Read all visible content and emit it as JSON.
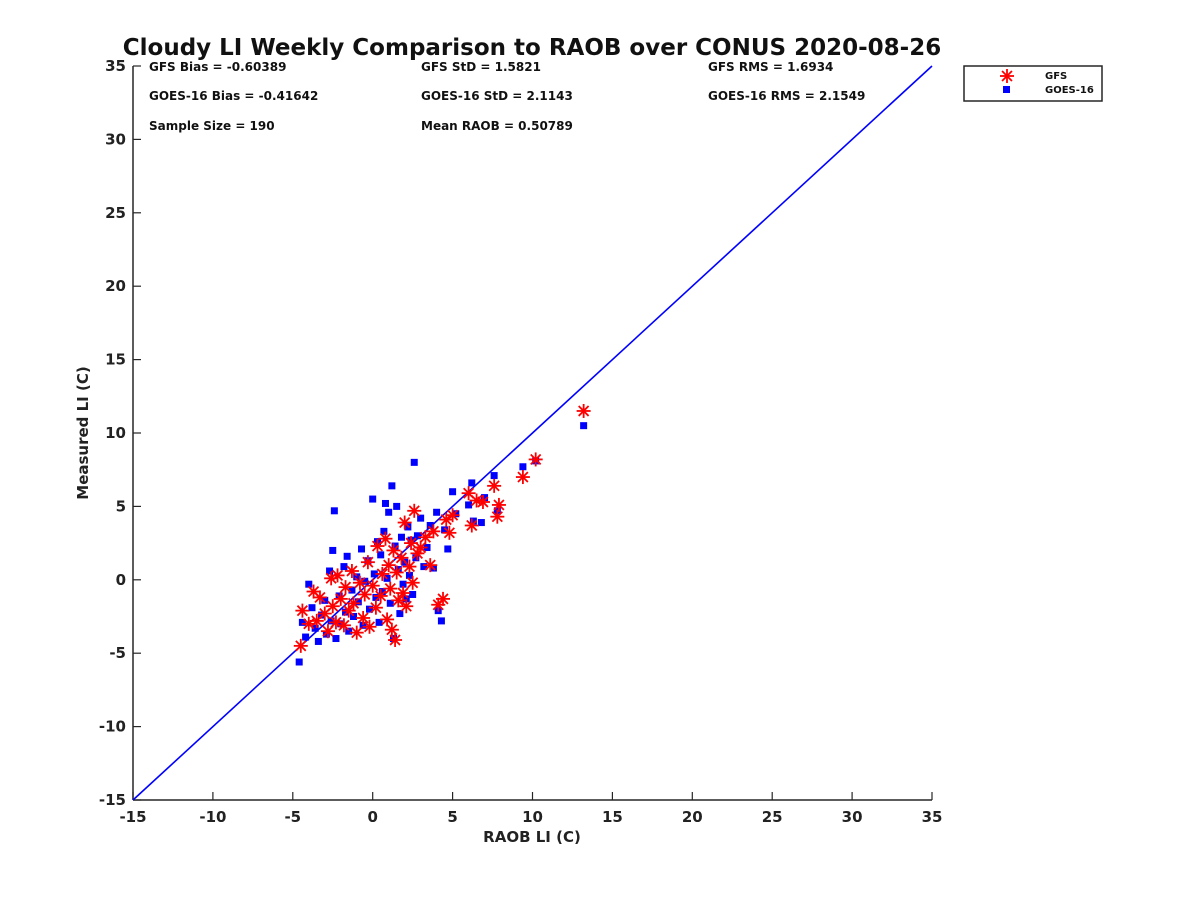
{
  "colors": {
    "gfs": "#ff0000",
    "goes": "#0000ff",
    "line": "#0000ff",
    "axis": "#262626"
  },
  "chart_data": {
    "type": "scatter",
    "title": "Cloudy LI Weekly Comparison to RAOB over CONUS 2020-08-26",
    "xlabel": "RAOB LI (C)",
    "ylabel": "Measured LI (C)",
    "xlim": [
      -15,
      35
    ],
    "ylim": [
      -15,
      35
    ],
    "xticks": [
      -15,
      -10,
      -5,
      0,
      5,
      10,
      15,
      20,
      25,
      30,
      35
    ],
    "yticks": [
      -15,
      -10,
      -5,
      0,
      5,
      10,
      15,
      20,
      25,
      30,
      35
    ],
    "grid": false,
    "legend_position": "top-right-outside",
    "reference_line": {
      "name": "1:1 line",
      "from": [
        -15,
        -15
      ],
      "to": [
        35,
        35
      ]
    },
    "stats": {
      "gfs_bias": "GFS Bias = -0.60389",
      "gfs_std": "GFS StD = 1.5821",
      "gfs_rms": "GFS RMS = 1.6934",
      "goes_bias": "GOES-16 Bias = -0.41642",
      "goes_std": "GOES-16 StD = 2.1143",
      "goes_rms": "GOES-16 RMS = 2.1549",
      "sample_size": "Sample Size = 190",
      "mean_raob": "Mean RAOB = 0.50789"
    },
    "series": [
      {
        "name": "GFS",
        "marker": "asterisk",
        "points": [
          [
            -4.5,
            -4.5
          ],
          [
            -4.4,
            -2.1
          ],
          [
            -4.0,
            -3.0
          ],
          [
            -3.7,
            -0.8
          ],
          [
            -3.5,
            -2.8
          ],
          [
            -3.3,
            -1.2
          ],
          [
            -3.0,
            -2.3
          ],
          [
            -2.8,
            -3.5
          ],
          [
            -2.6,
            0.1
          ],
          [
            -2.5,
            -1.8
          ],
          [
            -2.3,
            -2.9
          ],
          [
            -2.2,
            0.3
          ],
          [
            -2.0,
            -1.3
          ],
          [
            -1.8,
            -3.1
          ],
          [
            -1.7,
            -0.5
          ],
          [
            -1.5,
            -2.1
          ],
          [
            -1.3,
            0.6
          ],
          [
            -1.2,
            -1.6
          ],
          [
            -1.0,
            -3.6
          ],
          [
            -0.8,
            -0.2
          ],
          [
            -0.6,
            -2.6
          ],
          [
            -0.5,
            -1.0
          ],
          [
            -0.3,
            1.2
          ],
          [
            -0.2,
            -3.2
          ],
          [
            0.0,
            -0.4
          ],
          [
            0.2,
            -1.9
          ],
          [
            0.3,
            2.3
          ],
          [
            0.5,
            -1.1
          ],
          [
            0.6,
            0.4
          ],
          [
            0.8,
            2.8
          ],
          [
            0.9,
            -2.7
          ],
          [
            1.0,
            1.0
          ],
          [
            1.1,
            -0.6
          ],
          [
            1.2,
            -3.4
          ],
          [
            1.3,
            2.0
          ],
          [
            1.4,
            -4.1
          ],
          [
            1.5,
            0.5
          ],
          [
            1.6,
            -1.4
          ],
          [
            1.8,
            1.5
          ],
          [
            1.9,
            -0.9
          ],
          [
            2.0,
            3.9
          ],
          [
            2.1,
            -1.8
          ],
          [
            2.3,
            0.9
          ],
          [
            2.4,
            2.5
          ],
          [
            2.5,
            -0.2
          ],
          [
            2.6,
            4.7
          ],
          [
            2.8,
            1.8
          ],
          [
            3.0,
            2.2
          ],
          [
            3.3,
            2.9
          ],
          [
            3.6,
            1.0
          ],
          [
            3.8,
            3.3
          ],
          [
            4.1,
            -1.7
          ],
          [
            4.4,
            -1.3
          ],
          [
            4.6,
            4.1
          ],
          [
            4.8,
            3.2
          ],
          [
            5.0,
            4.4
          ],
          [
            6.0,
            5.9
          ],
          [
            6.2,
            3.7
          ],
          [
            6.5,
            5.4
          ],
          [
            6.9,
            5.3
          ],
          [
            7.6,
            6.4
          ],
          [
            7.8,
            4.3
          ],
          [
            7.9,
            5.1
          ],
          [
            9.4,
            7.0
          ],
          [
            10.2,
            8.2
          ],
          [
            13.2,
            11.5
          ]
        ]
      },
      {
        "name": "GOES-16",
        "marker": "square",
        "points": [
          [
            -4.6,
            -5.6
          ],
          [
            -4.4,
            -2.9
          ],
          [
            -4.2,
            -3.9
          ],
          [
            -4.0,
            -0.3
          ],
          [
            -3.8,
            -1.9
          ],
          [
            -3.6,
            -3.3
          ],
          [
            -3.4,
            -4.2
          ],
          [
            -3.2,
            -2.4
          ],
          [
            -3.0,
            -1.4
          ],
          [
            -2.9,
            -3.7
          ],
          [
            -2.7,
            0.6
          ],
          [
            -2.6,
            -2.8
          ],
          [
            -2.5,
            2.0
          ],
          [
            -2.4,
            4.7
          ],
          [
            -2.3,
            -4.0
          ],
          [
            -2.1,
            -1.1
          ],
          [
            -2.0,
            -3.0
          ],
          [
            -1.8,
            0.9
          ],
          [
            -1.7,
            -2.2
          ],
          [
            -1.6,
            1.6
          ],
          [
            -1.5,
            -3.5
          ],
          [
            -1.3,
            -0.7
          ],
          [
            -1.2,
            -2.5
          ],
          [
            -1.0,
            0.2
          ],
          [
            -0.9,
            -1.5
          ],
          [
            -0.7,
            2.1
          ],
          [
            -0.6,
            -3.1
          ],
          [
            -0.5,
            -0.1
          ],
          [
            -0.3,
            1.3
          ],
          [
            -0.2,
            -2.0
          ],
          [
            0.0,
            5.5
          ],
          [
            0.1,
            0.4
          ],
          [
            0.2,
            -1.2
          ],
          [
            0.3,
            2.6
          ],
          [
            0.4,
            -2.9
          ],
          [
            0.5,
            1.7
          ],
          [
            0.6,
            -0.8
          ],
          [
            0.7,
            3.3
          ],
          [
            0.8,
            5.2
          ],
          [
            0.9,
            0.1
          ],
          [
            1.0,
            4.6
          ],
          [
            1.1,
            -1.6
          ],
          [
            1.2,
            6.4
          ],
          [
            1.3,
            -4.0
          ],
          [
            1.4,
            2.3
          ],
          [
            1.5,
            5.0
          ],
          [
            1.6,
            0.7
          ],
          [
            1.7,
            -2.3
          ],
          [
            1.8,
            2.9
          ],
          [
            1.9,
            -0.3
          ],
          [
            2.0,
            1.2
          ],
          [
            2.1,
            -1.3
          ],
          [
            2.2,
            3.6
          ],
          [
            2.3,
            0.3
          ],
          [
            2.4,
            2.7
          ],
          [
            2.5,
            -1.0
          ],
          [
            2.6,
            8.0
          ],
          [
            2.7,
            1.5
          ],
          [
            2.8,
            3.0
          ],
          [
            3.0,
            4.2
          ],
          [
            3.2,
            0.9
          ],
          [
            3.4,
            2.2
          ],
          [
            3.6,
            3.7
          ],
          [
            3.8,
            0.8
          ],
          [
            4.0,
            4.6
          ],
          [
            4.1,
            -2.1
          ],
          [
            4.3,
            -2.8
          ],
          [
            4.5,
            3.4
          ],
          [
            4.7,
            2.1
          ],
          [
            5.0,
            6.0
          ],
          [
            5.2,
            4.5
          ],
          [
            6.0,
            5.1
          ],
          [
            6.2,
            6.6
          ],
          [
            6.3,
            4.0
          ],
          [
            6.8,
            3.9
          ],
          [
            7.0,
            5.6
          ],
          [
            7.6,
            7.1
          ],
          [
            7.8,
            4.7
          ],
          [
            9.4,
            7.7
          ],
          [
            10.2,
            8.1
          ],
          [
            13.2,
            10.5
          ]
        ]
      }
    ]
  }
}
